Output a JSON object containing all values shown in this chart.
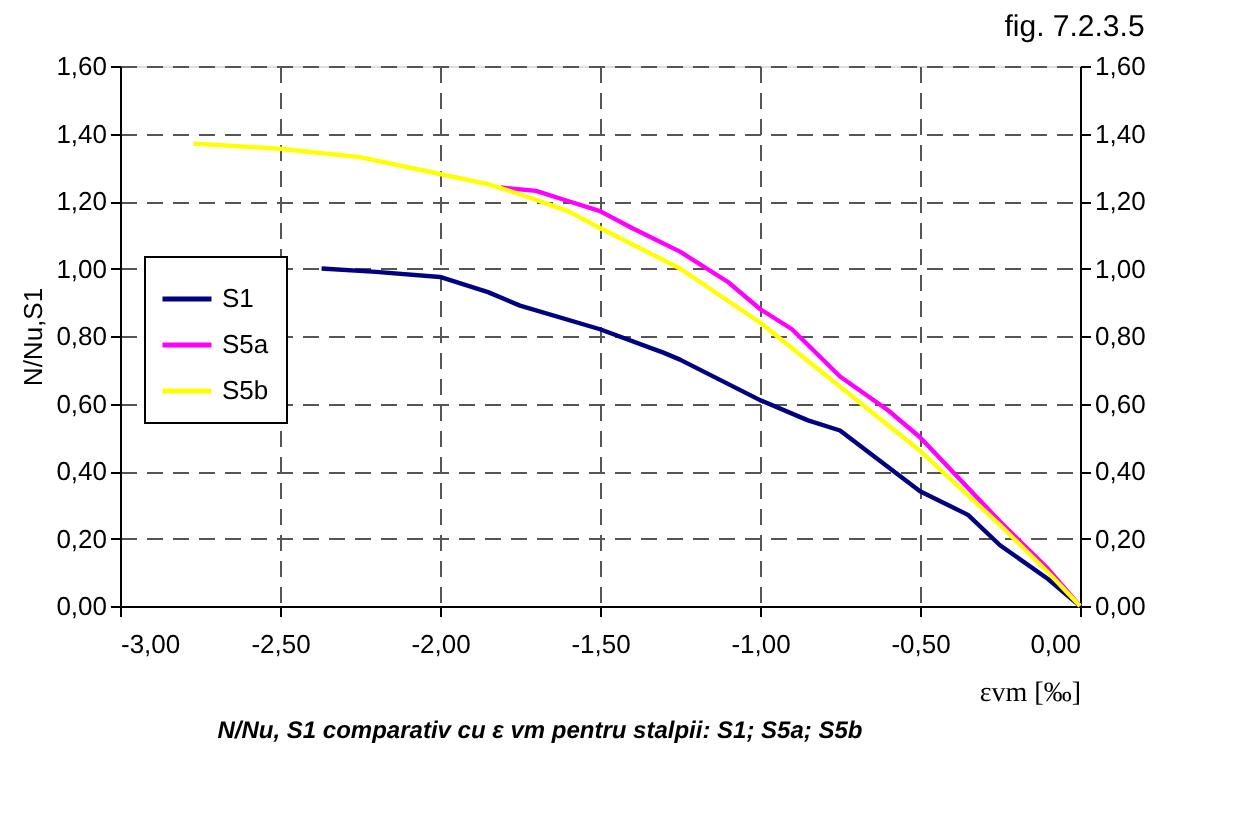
{
  "chart_data": {
    "type": "line",
    "title": "fig. 7.2.3.5",
    "xlabel": "εvm [‰]",
    "ylabel": "N/Nu,S1",
    "annotations": [
      "N/Nu, S1 comparativ cu ε vm pentru stalpii: S1; S5a; S5b"
    ],
    "series": [
      {
        "name": "S1",
        "color": "#000080",
        "x": [
          -2.37,
          -2.2,
          -2.0,
          -1.85,
          -1.75,
          -1.5,
          -1.3,
          -1.25,
          -1.0,
          -0.85,
          -0.75,
          -0.5,
          -0.35,
          -0.25,
          -0.1,
          0.0
        ],
        "values": [
          1.0,
          0.99,
          0.975,
          0.93,
          0.89,
          0.82,
          0.75,
          0.73,
          0.61,
          0.55,
          0.52,
          0.34,
          0.27,
          0.18,
          0.08,
          0.0
        ]
      },
      {
        "name": "S5a",
        "color": "#ff00ff",
        "x": [
          -1.81,
          -1.7,
          -1.6,
          -1.5,
          -1.4,
          -1.25,
          -1.1,
          -1.0,
          -0.9,
          -0.75,
          -0.6,
          -0.5,
          -0.4,
          -0.25,
          -0.1,
          0.0
        ],
        "values": [
          1.24,
          1.23,
          1.2,
          1.17,
          1.12,
          1.05,
          0.96,
          0.88,
          0.82,
          0.68,
          0.58,
          0.5,
          0.4,
          0.25,
          0.11,
          0.0
        ]
      },
      {
        "name": "S5b",
        "color": "#ffff00",
        "x": [
          -2.77,
          -2.5,
          -2.25,
          -2.0,
          -1.85,
          -1.75,
          -1.6,
          -1.5,
          -1.25,
          -1.0,
          -0.75,
          -0.5,
          -0.25,
          -0.1,
          0.0
        ],
        "values": [
          1.37,
          1.355,
          1.33,
          1.28,
          1.25,
          1.22,
          1.17,
          1.12,
          1.0,
          0.84,
          0.65,
          0.46,
          0.24,
          0.1,
          0.0
        ]
      }
    ],
    "xlim": [
      -3.0,
      0.0
    ],
    "xticks": [
      {
        "value": -3.0,
        "label": "-3,00"
      },
      {
        "value": -2.5,
        "label": "-2,50"
      },
      {
        "value": -2.0,
        "label": "-2,00"
      },
      {
        "value": -1.5,
        "label": "-1,50"
      },
      {
        "value": -1.0,
        "label": "-1,00"
      },
      {
        "value": -0.5,
        "label": "-0,50"
      },
      {
        "value": 0.0,
        "label": "0,00"
      }
    ],
    "ylim": [
      0.0,
      1.6
    ],
    "yticks": [
      {
        "value": 0.0,
        "label": "0,00"
      },
      {
        "value": 0.2,
        "label": "0,20"
      },
      {
        "value": 0.4,
        "label": "0,40"
      },
      {
        "value": 0.6,
        "label": "0,60"
      },
      {
        "value": 0.8,
        "label": "0,80"
      },
      {
        "value": 1.0,
        "label": "1,00"
      },
      {
        "value": 1.2,
        "label": "1,20"
      },
      {
        "value": 1.4,
        "label": "1,40"
      },
      {
        "value": 1.6,
        "label": "1,60"
      }
    ],
    "y2lim": [
      0.0,
      1.6
    ],
    "y2ticks": [
      {
        "value": 0.0,
        "label": "0,00"
      },
      {
        "value": 0.2,
        "label": "0,20"
      },
      {
        "value": 0.4,
        "label": "0,40"
      },
      {
        "value": 0.6,
        "label": "0,60"
      },
      {
        "value": 0.8,
        "label": "0,80"
      },
      {
        "value": 1.0,
        "label": "1,00"
      },
      {
        "value": 1.2,
        "label": "1,20"
      },
      {
        "value": 1.4,
        "label": "1,40"
      },
      {
        "value": 1.6,
        "label": "1,60"
      }
    ],
    "grid": true,
    "legend": "left",
    "line_style": "solid",
    "marker": "none"
  }
}
